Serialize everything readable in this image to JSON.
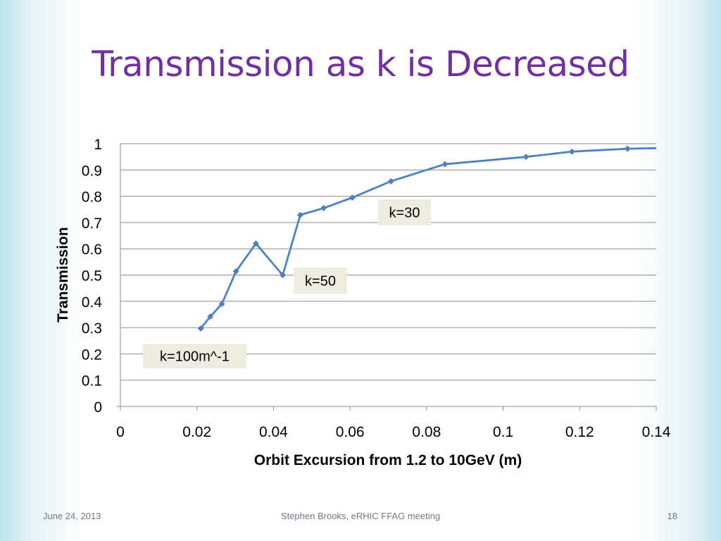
{
  "slide": {
    "title": "Transmission as k is Decreased",
    "footer_date": "June 24, 2013",
    "footer_center": "Stephen Brooks, eRHIC FFAG meeting",
    "page_number": "18"
  },
  "colors": {
    "title": "#7030a0",
    "series_line": "#4f81bd",
    "gridline": "#8c8c8c",
    "label_box": "#eeece1"
  },
  "chart_data": {
    "type": "line",
    "xlabel": "Orbit Excursion from 1.2 to 10GeV (m)",
    "ylabel": "Transmission",
    "xlim": [
      0,
      0.14
    ],
    "ylim": [
      0,
      1
    ],
    "x_ticks": [
      "0",
      "0.02",
      "0.04",
      "0.06",
      "0.08",
      "0.1",
      "0.12",
      "0.14"
    ],
    "y_ticks": [
      "0",
      "0.1",
      "0.2",
      "0.3",
      "0.4",
      "0.5",
      "0.6",
      "0.7",
      "0.8",
      "0.9",
      "1"
    ],
    "grid": "horizontal",
    "series": [
      {
        "x": [
          0.021,
          0.0235,
          0.0265,
          0.0302,
          0.0354,
          0.0424,
          0.047,
          0.0531,
          0.0606,
          0.0707,
          0.0848,
          0.106,
          0.118,
          0.1325,
          0.14
        ],
        "y": [
          0.297,
          0.342,
          0.39,
          0.514,
          0.62,
          0.5,
          0.729,
          0.755,
          0.795,
          0.857,
          0.922,
          0.95,
          0.97,
          0.981,
          0.983
        ],
        "markers": [
          true,
          true,
          true,
          true,
          true,
          true,
          true,
          true,
          true,
          true,
          true,
          true,
          true,
          true,
          false
        ]
      }
    ],
    "annotations": [
      {
        "text": "k=100m^-1",
        "near_x": 0.021,
        "near_y": 0.297
      },
      {
        "text": "k=50",
        "near_x": 0.0424,
        "near_y": 0.5
      },
      {
        "text": "k=30",
        "near_x": 0.0707,
        "near_y": 0.857
      }
    ]
  }
}
